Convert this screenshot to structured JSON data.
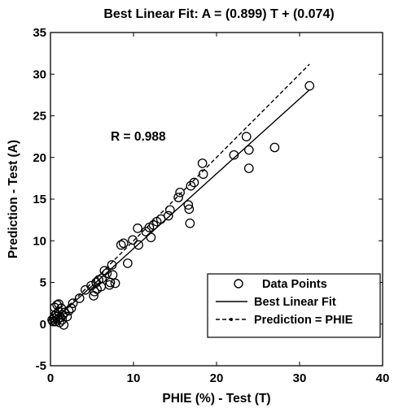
{
  "chart_data": {
    "type": "scatter",
    "title": "Best Linear Fit: A = (0.899) T + (0.074)",
    "xlabel": "PHIE (%) - Test (T)",
    "ylabel": "Prediction - Test (A)",
    "xlim": [
      0,
      40
    ],
    "ylim": [
      -5,
      35
    ],
    "xticks": [
      0,
      10,
      20,
      30,
      40
    ],
    "yticks": [
      -5,
      0,
      5,
      10,
      15,
      20,
      25,
      30,
      35
    ],
    "annotation": "R = 0.988",
    "legend": {
      "position": "bottom-right",
      "entries": [
        "Data Points",
        "Best Linear Fit",
        "Prediction = PHIE"
      ]
    },
    "fit_line": {
      "slope": 0.899,
      "intercept": 0.074,
      "x_range": [
        0,
        31.2
      ]
    },
    "identity_line": {
      "slope": 1,
      "intercept": 0,
      "x_range": [
        0,
        31.2
      ]
    },
    "series": [
      {
        "name": "Data Points",
        "points": [
          [
            0.2,
            0.5
          ],
          [
            0.3,
            0.3
          ],
          [
            0.4,
            0.7
          ],
          [
            0.5,
            1.0
          ],
          [
            0.5,
            2.0
          ],
          [
            0.6,
            0.3
          ],
          [
            0.7,
            1.2
          ],
          [
            0.8,
            0.9
          ],
          [
            0.8,
            2.3
          ],
          [
            0.9,
            0.6
          ],
          [
            1.0,
            1.5
          ],
          [
            1.0,
            2.4
          ],
          [
            1.1,
            0.2
          ],
          [
            1.2,
            0.8
          ],
          [
            1.3,
            1.9
          ],
          [
            1.4,
            0.5
          ],
          [
            1.5,
            1.1
          ],
          [
            1.6,
            -0.1
          ],
          [
            1.7,
            1.4
          ],
          [
            2.0,
            0.9
          ],
          [
            2.2,
            1.6
          ],
          [
            2.5,
            1.9
          ],
          [
            2.7,
            2.5
          ],
          [
            3.5,
            3.1
          ],
          [
            4.2,
            4.1
          ],
          [
            4.9,
            4.6
          ],
          [
            5.2,
            3.4
          ],
          [
            5.3,
            3.9
          ],
          [
            5.5,
            5.0
          ],
          [
            5.6,
            4.2
          ],
          [
            5.8,
            5.3
          ],
          [
            6.1,
            4.5
          ],
          [
            6.2,
            5.5
          ],
          [
            6.5,
            6.4
          ],
          [
            6.8,
            6.1
          ],
          [
            7.1,
            4.7
          ],
          [
            7.2,
            5.0
          ],
          [
            7.4,
            7.1
          ],
          [
            7.5,
            5.9
          ],
          [
            7.8,
            4.9
          ],
          [
            8.5,
            9.5
          ],
          [
            8.8,
            9.7
          ],
          [
            9.3,
            7.3
          ],
          [
            9.9,
            10.1
          ],
          [
            10.5,
            11.5
          ],
          [
            10.6,
            9.5
          ],
          [
            11.5,
            11.1
          ],
          [
            11.9,
            11.6
          ],
          [
            12.1,
            10.4
          ],
          [
            12.4,
            11.9
          ],
          [
            12.8,
            12.3
          ],
          [
            13.3,
            12.6
          ],
          [
            14.2,
            13.0
          ],
          [
            14.4,
            13.7
          ],
          [
            15.4,
            15.2
          ],
          [
            15.6,
            15.8
          ],
          [
            16.6,
            14.3
          ],
          [
            16.7,
            13.8
          ],
          [
            16.8,
            12.1
          ],
          [
            16.9,
            16.6
          ],
          [
            17.3,
            17.0
          ],
          [
            18.3,
            19.3
          ],
          [
            18.4,
            18.0
          ],
          [
            22.1,
            20.3
          ],
          [
            23.6,
            22.5
          ],
          [
            23.9,
            20.9
          ],
          [
            23.9,
            18.7
          ],
          [
            27.0,
            21.2
          ],
          [
            31.2,
            28.6
          ]
        ]
      }
    ]
  }
}
